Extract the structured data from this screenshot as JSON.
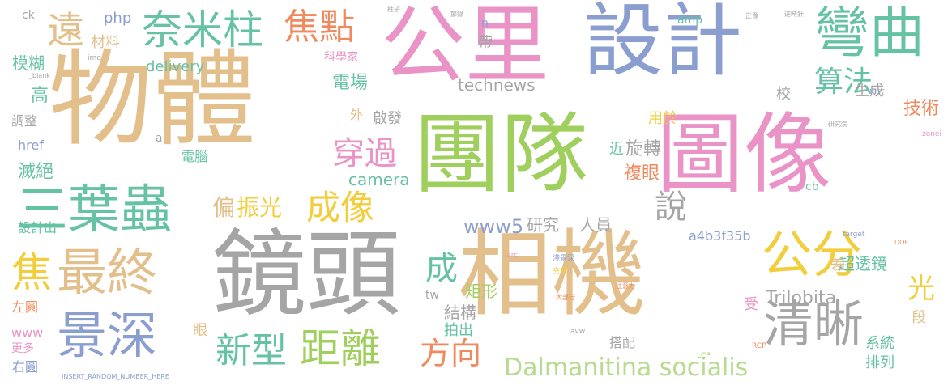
{
  "palette": {
    "tan": "#e3c08b",
    "pink": "#e993c6",
    "gray": "#a5a5a5",
    "blue": "#8b9ed0",
    "green": "#9fcf5c",
    "teal": "#66c2a5",
    "orange": "#f08a5e",
    "yellow": "#f2cd3c",
    "lightgreen": "#b7db8f"
  },
  "words": [
    {
      "text": "物體",
      "color": "tan"
    },
    {
      "text": "公里",
      "color": "pink"
    },
    {
      "text": "設計",
      "color": "blue"
    },
    {
      "text": "團隊",
      "color": "green"
    },
    {
      "text": "圖像",
      "color": "pink"
    },
    {
      "text": "鏡頭",
      "color": "gray"
    },
    {
      "text": "相機",
      "color": "tan"
    },
    {
      "text": "彎曲",
      "color": "teal"
    },
    {
      "text": "三葉蟲",
      "color": "teal"
    },
    {
      "text": "最終",
      "color": "tan"
    },
    {
      "text": "景深",
      "color": "blue"
    },
    {
      "text": "清晰",
      "color": "gray"
    },
    {
      "text": "公分",
      "color": "yellow"
    },
    {
      "text": "奈米柱",
      "color": "teal"
    },
    {
      "text": "焦點",
      "color": "orange"
    },
    {
      "text": "距離",
      "color": "green"
    },
    {
      "text": "新型",
      "color": "teal"
    },
    {
      "text": "成像",
      "color": "yellow"
    },
    {
      "text": "方向",
      "color": "orange"
    },
    {
      "text": "穿過",
      "color": "pink"
    },
    {
      "text": "算法",
      "color": "teal"
    },
    {
      "text": "遠",
      "color": "tan"
    },
    {
      "text": "焦",
      "color": "yellow"
    },
    {
      "text": "成",
      "color": "teal"
    },
    {
      "text": "說",
      "color": "gray"
    },
    {
      "text": "光",
      "color": "yellow"
    },
    {
      "text": "Dalmanitina socialis",
      "color": "lightgreen"
    },
    {
      "text": "偏",
      "color": "tan"
    },
    {
      "text": "振光",
      "color": "yellow"
    },
    {
      "text": "研究",
      "color": "gray"
    },
    {
      "text": "人員",
      "color": "gray"
    },
    {
      "text": "www5",
      "color": "blue"
    },
    {
      "text": "Trilobita",
      "color": "gray"
    },
    {
      "text": "超透鏡",
      "color": "teal"
    },
    {
      "text": "技術",
      "color": "orange"
    },
    {
      "text": "電場",
      "color": "teal"
    },
    {
      "text": "複眼",
      "color": "orange"
    },
    {
      "text": "旋轉",
      "color": "gray"
    },
    {
      "text": "結構",
      "color": "gray"
    },
    {
      "text": "矩形",
      "color": "green"
    },
    {
      "text": "滅絕",
      "color": "teal"
    },
    {
      "text": "模糊",
      "color": "teal"
    },
    {
      "text": "delivery",
      "color": "teal"
    },
    {
      "text": "technews",
      "color": "gray"
    },
    {
      "text": "camera",
      "color": "teal"
    },
    {
      "text": "啟發",
      "color": "gray"
    },
    {
      "text": "a4b3f35b",
      "color": "blue"
    },
    {
      "text": "生成",
      "color": "gray"
    },
    {
      "text": "用於",
      "color": "yellow"
    },
    {
      "text": "材料",
      "color": "tan"
    },
    {
      "text": "php",
      "color": "blue"
    },
    {
      "text": "ck",
      "color": "gray"
    },
    {
      "text": "左圓",
      "color": "orange"
    },
    {
      "text": "右圓",
      "color": "blue"
    },
    {
      "text": "排列",
      "color": "teal"
    },
    {
      "text": "系統",
      "color": "teal"
    },
    {
      "text": "差",
      "color": "tan"
    },
    {
      "text": "段",
      "color": "tan"
    },
    {
      "text": "拍出",
      "color": "teal"
    },
    {
      "text": "搭配",
      "color": "gray"
    },
    {
      "text": "設計出",
      "color": "teal"
    },
    {
      "text": "更多",
      "color": "pink"
    },
    {
      "text": "www",
      "color": "pink"
    },
    {
      "text": "電腦",
      "color": "teal"
    },
    {
      "text": "高",
      "color": "teal"
    },
    {
      "text": "調整",
      "color": "gray"
    },
    {
      "text": "href",
      "color": "blue"
    },
    {
      "text": "科學家",
      "color": "pink"
    },
    {
      "text": "amp",
      "color": "teal"
    },
    {
      "text": "外",
      "color": "tan"
    },
    {
      "text": "近",
      "color": "teal"
    },
    {
      "text": "帶",
      "color": "gray"
    },
    {
      "text": "受",
      "color": "pink"
    },
    {
      "text": "眼",
      "color": "tan"
    },
    {
      "text": "cb",
      "color": "teal"
    },
    {
      "text": "校",
      "color": "gray"
    },
    {
      "text": "tw",
      "color": "gray"
    },
    {
      "text": "a",
      "color": "gray"
    },
    {
      "text": "INSERT_RANDOM_NUMBER_HERE",
      "color": "blue"
    },
    {
      "text": "target",
      "color": "blue"
    },
    {
      "text": "NIST",
      "color": "blue"
    },
    {
      "text": "zonei",
      "color": "pink"
    },
    {
      "text": "LCP",
      "color": "green"
    },
    {
      "text": "RCP",
      "color": "orange"
    },
    {
      "text": "avw",
      "color": "gray"
    },
    {
      "text": "DOF",
      "color": "orange"
    },
    {
      "text": "src",
      "color": "pink"
    },
    {
      "text": "_blank",
      "color": "gray"
    },
    {
      "text": "n",
      "color": "blue"
    },
    {
      "text": "img",
      "color": "gray"
    },
    {
      "text": "研究院",
      "color": "gray"
    },
    {
      "text": "柱子",
      "color": "gray"
    },
    {
      "text": "節錄",
      "color": "gray"
    },
    {
      "text": "逆時針",
      "color": "gray"
    },
    {
      "text": "正像",
      "color": "gray"
    },
    {
      "text": "淺景深",
      "color": "blue"
    },
    {
      "text": "充當",
      "color": "yellow"
    },
    {
      "text": "大部分",
      "color": "orange"
    },
    {
      "text": "注意力",
      "color": "orange"
    }
  ]
}
